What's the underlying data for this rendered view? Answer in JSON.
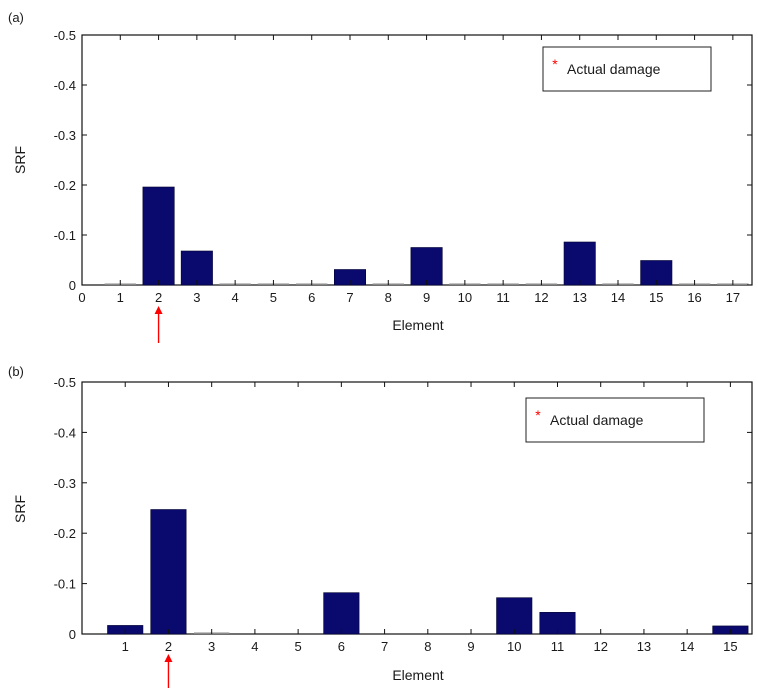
{
  "chart_data": [
    {
      "panel_label": "(a)",
      "type": "bar",
      "xlabel": "Element",
      "ylabel": "SRF",
      "ylim": [
        0,
        -0.5
      ],
      "y_axis_reversed": true,
      "xlim": [
        0,
        17.5
      ],
      "x_ticks": [
        0,
        1,
        2,
        3,
        4,
        5,
        6,
        7,
        8,
        9,
        10,
        11,
        12,
        13,
        14,
        15,
        16,
        17
      ],
      "y_ticks": [
        "0",
        "-0.1",
        "-0.2",
        "-0.3",
        "-0.4",
        "-0.5"
      ],
      "categories": [
        1,
        2,
        3,
        4,
        5,
        6,
        7,
        8,
        9,
        10,
        11,
        12,
        13,
        14,
        15,
        16,
        17
      ],
      "values": [
        -0.003,
        -0.196,
        -0.068,
        -0.003,
        -0.003,
        -0.003,
        -0.031,
        -0.003,
        -0.075,
        -0.003,
        -0.003,
        -0.003,
        -0.086,
        -0.003,
        -0.049,
        -0.003,
        -0.003
      ],
      "bar_color": "#0a0a6e",
      "legend": {
        "label": "Actual damage",
        "marker": "*",
        "marker_color": "#ff0000",
        "placement": "top-right"
      },
      "actual_damage_element": 2,
      "arrow_color": "#ff0000"
    },
    {
      "panel_label": "(b)",
      "type": "bar",
      "xlabel": "Element",
      "ylabel": "SRF",
      "ylim": [
        0,
        -0.5
      ],
      "y_axis_reversed": true,
      "xlim": [
        0,
        15.5
      ],
      "x_ticks": [
        1,
        2,
        3,
        4,
        5,
        6,
        7,
        8,
        9,
        10,
        11,
        12,
        13,
        14,
        15
      ],
      "y_ticks": [
        "0",
        "-0.1",
        "-0.2",
        "-0.3",
        "-0.4",
        "-0.5"
      ],
      "categories": [
        1,
        2,
        3,
        4,
        5,
        6,
        7,
        8,
        9,
        10,
        11,
        12,
        13,
        14,
        15
      ],
      "values": [
        -0.017,
        -0.247,
        -0.003,
        0,
        0,
        -0.082,
        0,
        0,
        0,
        -0.072,
        -0.043,
        0,
        0,
        0,
        -0.016
      ],
      "bar_color": "#0a0a6e",
      "legend": {
        "label": "Actual damage",
        "marker": "*",
        "marker_color": "#ff0000",
        "placement": "top-right"
      },
      "actual_damage_element": 2,
      "arrow_color": "#ff0000"
    }
  ]
}
